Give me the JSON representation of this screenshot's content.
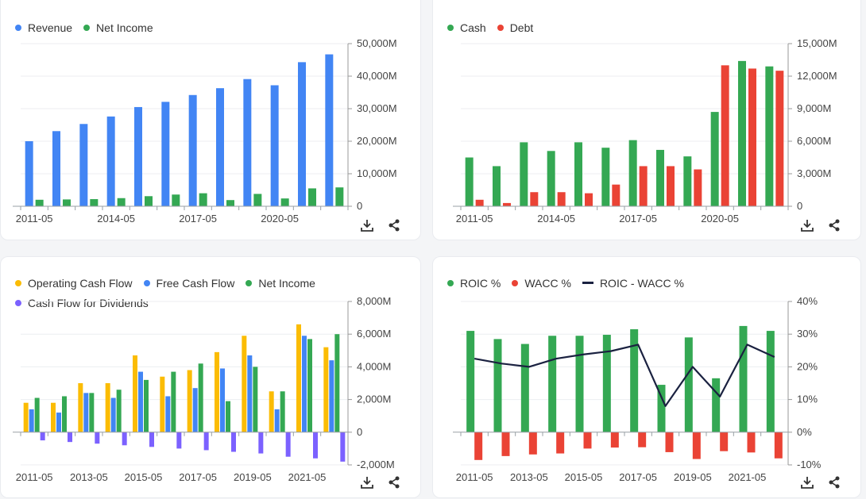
{
  "icons": {
    "download": "download-icon",
    "share": "share-icon"
  },
  "chart_data": [
    {
      "type": "bar",
      "title": "",
      "legend_position": "top-left",
      "grid": true,
      "x_tick_labels": [
        "2011-05",
        "2014-05",
        "2017-05",
        "2020-05"
      ],
      "x_tick_indices": [
        0,
        3,
        6,
        9
      ],
      "categories": [
        "2011-05",
        "2012-05",
        "2013-05",
        "2014-05",
        "2015-05",
        "2016-05",
        "2017-05",
        "2018-05",
        "2019-05",
        "2020-05",
        "2021-05",
        "2022-05"
      ],
      "y_tick_labels": [
        "50,000M",
        "40,000M",
        "30,000M",
        "20,000M",
        "10,000M",
        "0"
      ],
      "ylim": [
        0,
        50000
      ],
      "series": [
        {
          "name": "Revenue",
          "color": "#4285f4",
          "values": [
            20000,
            23100,
            25300,
            27600,
            30500,
            32100,
            34200,
            36300,
            39100,
            37200,
            44300,
            46700
          ]
        },
        {
          "name": "Net Income",
          "color": "#34a853",
          "values": [
            2000,
            2100,
            2200,
            2500,
            3100,
            3600,
            4000,
            1900,
            3800,
            2400,
            5500,
            5800
          ]
        }
      ]
    },
    {
      "type": "bar",
      "title": "",
      "legend_position": "top-left",
      "grid": true,
      "x_tick_labels": [
        "2011-05",
        "2014-05",
        "2017-05",
        "2020-05"
      ],
      "x_tick_indices": [
        0,
        3,
        6,
        9
      ],
      "categories": [
        "2011-05",
        "2012-05",
        "2013-05",
        "2014-05",
        "2015-05",
        "2016-05",
        "2017-05",
        "2018-05",
        "2019-05",
        "2020-05",
        "2021-05",
        "2022-05"
      ],
      "y_tick_labels": [
        "15,000M",
        "12,000M",
        "9,000M",
        "6,000M",
        "3,000M",
        "0"
      ],
      "ylim": [
        0,
        15000
      ],
      "series": [
        {
          "name": "Cash",
          "color": "#34a853",
          "values": [
            4500,
            3700,
            5900,
            5100,
            5900,
            5400,
            6100,
            5200,
            4600,
            8700,
            13400,
            12900
          ]
        },
        {
          "name": "Debt",
          "color": "#ea4335",
          "values": [
            600,
            300,
            1300,
            1300,
            1200,
            2000,
            3700,
            3700,
            3400,
            13000,
            12700,
            12500
          ]
        }
      ]
    },
    {
      "type": "bar",
      "title": "",
      "legend_position": "top-left",
      "grid": true,
      "x_tick_labels": [
        "2011-05",
        "2013-05",
        "2015-05",
        "2017-05",
        "2019-05",
        "2021-05"
      ],
      "x_tick_indices": [
        0,
        2,
        4,
        6,
        8,
        10
      ],
      "categories": [
        "2011-05",
        "2012-05",
        "2013-05",
        "2014-05",
        "2015-05",
        "2016-05",
        "2017-05",
        "2018-05",
        "2019-05",
        "2020-05",
        "2021-05",
        "2022-05"
      ],
      "y_tick_labels": [
        "8,000M",
        "6,000M",
        "4,000M",
        "2,000M",
        "0",
        "-2,000M"
      ],
      "ylim": [
        -2000,
        8000
      ],
      "series": [
        {
          "name": "Operating Cash Flow",
          "color": "#fbbc04",
          "values": [
            1800,
            1800,
            3000,
            3000,
            4700,
            3400,
            3800,
            4900,
            5900,
            2500,
            6600,
            5200
          ]
        },
        {
          "name": "Free Cash Flow",
          "color": "#4285f4",
          "values": [
            1400,
            1200,
            2400,
            2100,
            3700,
            2200,
            2700,
            3900,
            4700,
            1400,
            5900,
            4400
          ]
        },
        {
          "name": "Net Income",
          "color": "#34a853",
          "values": [
            2100,
            2200,
            2400,
            2600,
            3200,
            3700,
            4200,
            1900,
            4000,
            2500,
            5700,
            6000
          ]
        },
        {
          "name": "Cash Flow for Dividends",
          "color": "#7b61ff",
          "values": [
            -500,
            -600,
            -700,
            -800,
            -900,
            -1000,
            -1100,
            -1200,
            -1300,
            -1500,
            -1600,
            -1800
          ]
        }
      ]
    },
    {
      "type": "bar",
      "title": "",
      "legend_position": "top-left",
      "grid": true,
      "x_tick_labels": [
        "2011-05",
        "2013-05",
        "2015-05",
        "2017-05",
        "2019-05",
        "2021-05"
      ],
      "x_tick_indices": [
        0,
        2,
        4,
        6,
        8,
        10
      ],
      "categories": [
        "2011-05",
        "2012-05",
        "2013-05",
        "2014-05",
        "2015-05",
        "2016-05",
        "2017-05",
        "2018-05",
        "2019-05",
        "2020-05",
        "2021-05",
        "2022-05"
      ],
      "y_tick_labels": [
        "40%",
        "30%",
        "20%",
        "10%",
        "0%",
        "-10%"
      ],
      "ylim": [
        -10,
        40
      ],
      "series": [
        {
          "name": "ROIC %",
          "color": "#34a853",
          "values": [
            31,
            28.5,
            27,
            29.5,
            29.5,
            29.8,
            31.5,
            14.5,
            29,
            16.5,
            32.5,
            31
          ]
        },
        {
          "name": "WACC %",
          "color": "#ea4335",
          "values": [
            -8.5,
            -7.3,
            -6.8,
            -6.5,
            -5,
            -4.7,
            -4.6,
            -6.1,
            -8.2,
            -5.8,
            -6.2,
            -8
          ]
        },
        {
          "name": "ROIC - WACC %",
          "color": "#1a2140",
          "line": true,
          "values": [
            22.5,
            21,
            20,
            22.5,
            23.8,
            24.8,
            26.8,
            8,
            20,
            10.9,
            26.8,
            23
          ]
        }
      ]
    }
  ]
}
